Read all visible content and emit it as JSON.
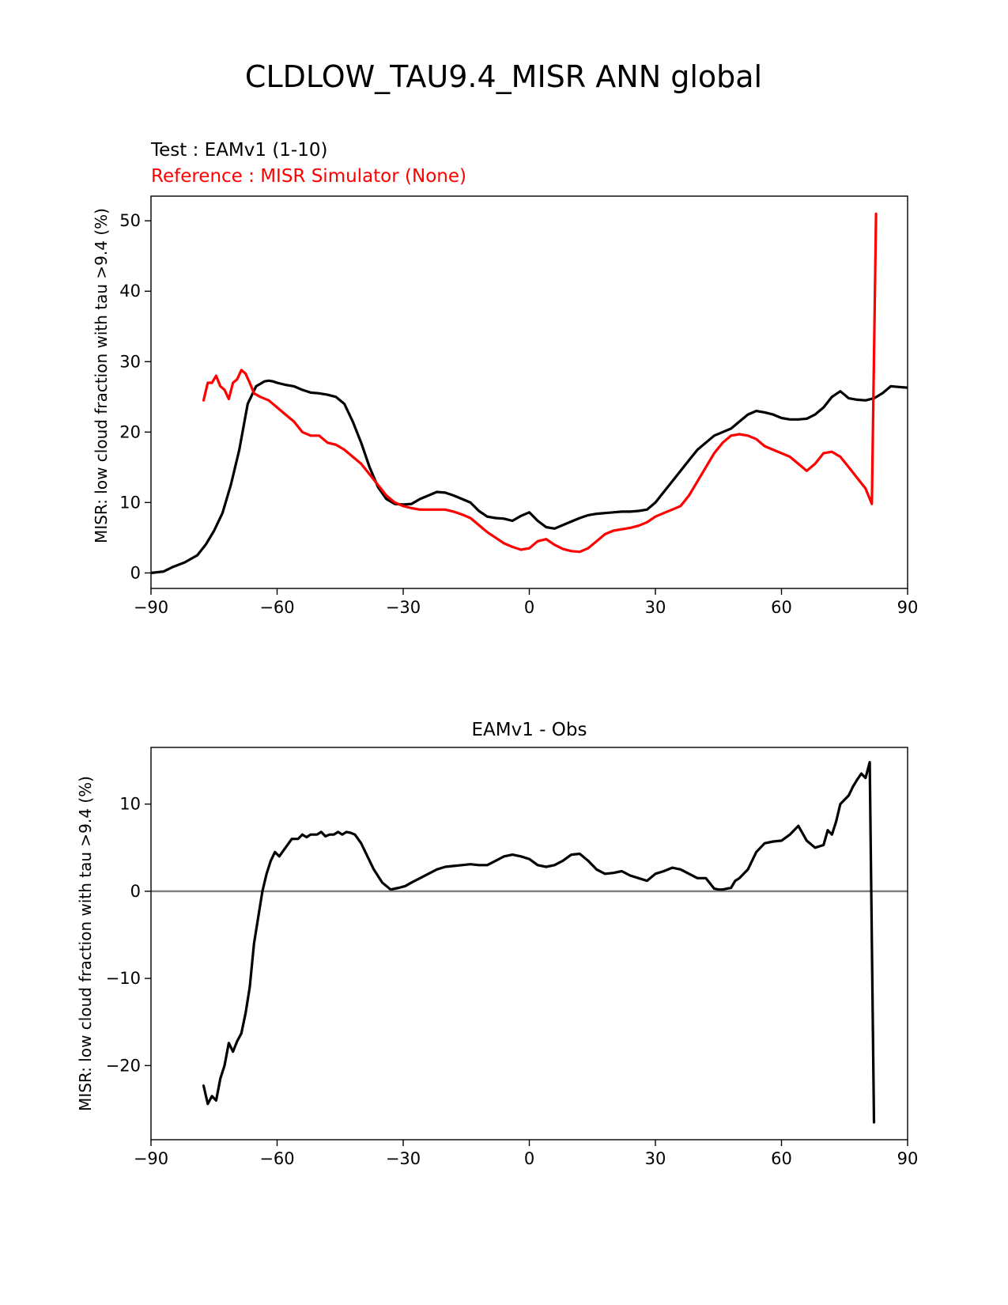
{
  "figure": {
    "title": "CLDLOW_TAU9.4_MISR ANN global"
  },
  "chart_data": [
    {
      "type": "line",
      "title": "",
      "test_label": "Test : EAMv1 (1-10)",
      "reference_label": "Reference : MISR Simulator (None)",
      "xlabel": "",
      "ylabel": "MISR: low cloud fraction with tau >9.4 (%)",
      "xlim": [
        -90,
        90
      ],
      "ylim": [
        -2.2,
        53.5
      ],
      "xticks": [
        -90,
        -60,
        -30,
        0,
        30,
        60,
        90
      ],
      "xtick_labels": [
        "−90",
        "−60",
        "−30",
        "0",
        "30",
        "60",
        "90"
      ],
      "yticks": [
        0,
        10,
        20,
        30,
        40,
        50
      ],
      "ytick_labels": [
        "0",
        "10",
        "20",
        "30",
        "40",
        "50"
      ],
      "grid": false,
      "series": [
        {
          "name": "Test : EAMv1 (1-10)",
          "color": "#000000",
          "x": [
            -90,
            -87,
            -85,
            -82,
            -79,
            -77,
            -75,
            -73,
            -71,
            -69,
            -67,
            -65,
            -63,
            -62,
            -61,
            -60,
            -58,
            -56,
            -54,
            -52,
            -50,
            -48,
            -46,
            -44,
            -42,
            -40,
            -38,
            -36,
            -34,
            -32,
            -30,
            -28,
            -26,
            -24,
            -22,
            -20,
            -18,
            -16,
            -14,
            -12,
            -10,
            -8,
            -6,
            -4,
            -2,
            0,
            2,
            4,
            6,
            8,
            10,
            12,
            14,
            16,
            18,
            20,
            22,
            24,
            26,
            28,
            30,
            32,
            34,
            36,
            38,
            40,
            42,
            44,
            46,
            48,
            50,
            52,
            54,
            56,
            58,
            60,
            62,
            64,
            66,
            68,
            70,
            72,
            74,
            76,
            78,
            80,
            82,
            84,
            86,
            88,
            90
          ],
          "y": [
            0,
            0.2,
            0.8,
            1.5,
            2.5,
            4,
            6,
            8.5,
            12.5,
            17.5,
            24,
            26.5,
            27.2,
            27.3,
            27.2,
            27,
            26.7,
            26.5,
            26,
            25.6,
            25.5,
            25.3,
            25,
            24,
            21.5,
            18.5,
            15,
            12.2,
            10.5,
            9.8,
            9.7,
            9.8,
            10.5,
            11,
            11.5,
            11.4,
            11,
            10.5,
            10,
            8.8,
            8,
            7.8,
            7.7,
            7.4,
            8.1,
            8.6,
            7.4,
            6.5,
            6.3,
            6.8,
            7.3,
            7.8,
            8.2,
            8.4,
            8.5,
            8.6,
            8.7,
            8.7,
            8.8,
            9,
            10,
            11.5,
            13,
            14.5,
            16,
            17.5,
            18.5,
            19.5,
            20,
            20.5,
            21.5,
            22.5,
            23,
            22.8,
            22.5,
            22,
            21.8,
            21.8,
            21.9,
            22.5,
            23.5,
            25,
            25.8,
            24.8,
            24.6,
            24.5,
            24.8,
            25.5,
            26.5,
            26.4,
            26.3
          ]
        },
        {
          "name": "Reference : MISR Simulator (None)",
          "color": "#ff0000",
          "x": [
            -77.5,
            -76.5,
            -75.5,
            -74.5,
            -73.5,
            -72.5,
            -71.5,
            -70.5,
            -69.5,
            -68.5,
            -67.5,
            -66.5,
            -65.5,
            -64,
            -62,
            -60,
            -58,
            -56,
            -54,
            -52,
            -50,
            -48,
            -46,
            -44,
            -42,
            -40,
            -38,
            -36,
            -34,
            -32,
            -30,
            -28,
            -26,
            -24,
            -22,
            -20,
            -18,
            -16,
            -14,
            -12,
            -10,
            -8,
            -6,
            -4,
            -2,
            0,
            2,
            4,
            6,
            8,
            10,
            12,
            14,
            16,
            18,
            20,
            22,
            24,
            26,
            28,
            30,
            32,
            34,
            36,
            38,
            40,
            42,
            44,
            46,
            48,
            50,
            52,
            54,
            56,
            58,
            60,
            62,
            64,
            66,
            68,
            70,
            72,
            74,
            76,
            78,
            80,
            81.5,
            82.5
          ],
          "y": [
            24.5,
            27,
            27,
            28,
            26.5,
            26,
            24.7,
            27,
            27.5,
            28.8,
            28.3,
            27,
            25.5,
            25,
            24.5,
            23.5,
            22.5,
            21.5,
            20,
            19.5,
            19.5,
            18.5,
            18.2,
            17.5,
            16.5,
            15.5,
            14,
            12.5,
            11,
            10,
            9.5,
            9.2,
            9,
            9,
            9,
            9,
            8.7,
            8.3,
            7.8,
            6.8,
            5.8,
            5,
            4.2,
            3.7,
            3.3,
            3.5,
            4.5,
            4.8,
            4,
            3.4,
            3.1,
            3,
            3.5,
            4.5,
            5.5,
            6,
            6.2,
            6.4,
            6.7,
            7.2,
            8,
            8.5,
            9,
            9.5,
            11,
            13,
            15,
            17,
            18.5,
            19.5,
            19.7,
            19.5,
            19,
            18,
            17.5,
            17,
            16.5,
            15.5,
            14.5,
            15.5,
            17,
            17.2,
            16.5,
            15,
            13.5,
            12,
            9.8,
            51
          ]
        }
      ]
    },
    {
      "type": "line",
      "title": "EAMv1 - Obs",
      "xlabel": "",
      "ylabel": "MISR: low cloud fraction with tau >9.4 (%)",
      "xlim": [
        -90,
        90
      ],
      "ylim": [
        -28.5,
        16.5
      ],
      "xticks": [
        -90,
        -60,
        -30,
        0,
        30,
        60,
        90
      ],
      "xtick_labels": [
        "−90",
        "−60",
        "−30",
        "0",
        "30",
        "60",
        "90"
      ],
      "yticks": [
        -20,
        -10,
        0,
        10
      ],
      "ytick_labels": [
        "−20",
        "−10",
        "0",
        "10"
      ],
      "zero_line_color": "#808080",
      "grid": false,
      "series": [
        {
          "name": "EAMv1 - Obs",
          "color": "#000000",
          "x": [
            -77.5,
            -76.5,
            -75.5,
            -74.5,
            -73.5,
            -72.5,
            -71.5,
            -70.5,
            -69.5,
            -68.5,
            -67.5,
            -66.5,
            -65.5,
            -64.5,
            -63.5,
            -62.5,
            -61.5,
            -60.5,
            -59.5,
            -58,
            -56.5,
            -55,
            -54,
            -53,
            -52,
            -50.5,
            -49.5,
            -48.5,
            -47.5,
            -46.5,
            -45.5,
            -44.5,
            -43.5,
            -42.5,
            -41.5,
            -40,
            -38.5,
            -37,
            -35,
            -33,
            -31,
            -29.5,
            -28,
            -26,
            -24,
            -22,
            -20,
            -18,
            -16,
            -14,
            -12,
            -10,
            -8,
            -6,
            -4,
            -2,
            0,
            2,
            4,
            6,
            8,
            10,
            12,
            14,
            16,
            18,
            20,
            22,
            24,
            26,
            28,
            30,
            32,
            34,
            36,
            38,
            40,
            42,
            44,
            45,
            46,
            47,
            48,
            49,
            50,
            52,
            54,
            56,
            58,
            60,
            62,
            64,
            66,
            68,
            70,
            71,
            72,
            73,
            74,
            75,
            76,
            77,
            78,
            79,
            80,
            81,
            82
          ],
          "y": [
            -22.3,
            -24.4,
            -23.5,
            -24,
            -21.5,
            -20,
            -17.4,
            -18.4,
            -17.2,
            -16.3,
            -14,
            -11,
            -6,
            -3,
            0,
            2,
            3.5,
            4.5,
            4,
            5,
            6,
            6,
            6.5,
            6.2,
            6.5,
            6.5,
            6.8,
            6.3,
            6.5,
            6.5,
            6.8,
            6.5,
            6.8,
            6.7,
            6.5,
            5.5,
            4,
            2.5,
            1,
            0.2,
            0.4,
            0.6,
            1,
            1.5,
            2,
            2.5,
            2.8,
            2.9,
            3,
            3.1,
            3,
            3,
            3.5,
            4,
            4.2,
            4,
            3.7,
            3,
            2.8,
            3,
            3.5,
            4.2,
            4.3,
            3.5,
            2.5,
            2,
            2.1,
            2.3,
            1.8,
            1.5,
            1.2,
            2,
            2.3,
            2.7,
            2.5,
            2,
            1.5,
            1.5,
            0.3,
            0.2,
            0.2,
            0.3,
            0.4,
            1.2,
            1.5,
            2.5,
            4.5,
            5.5,
            5.7,
            5.8,
            6.5,
            7.5,
            5.8,
            5,
            5.3,
            7,
            6.5,
            8,
            10,
            10.5,
            11,
            12,
            12.8,
            13.5,
            13,
            14.8,
            -26.5
          ]
        }
      ]
    }
  ]
}
